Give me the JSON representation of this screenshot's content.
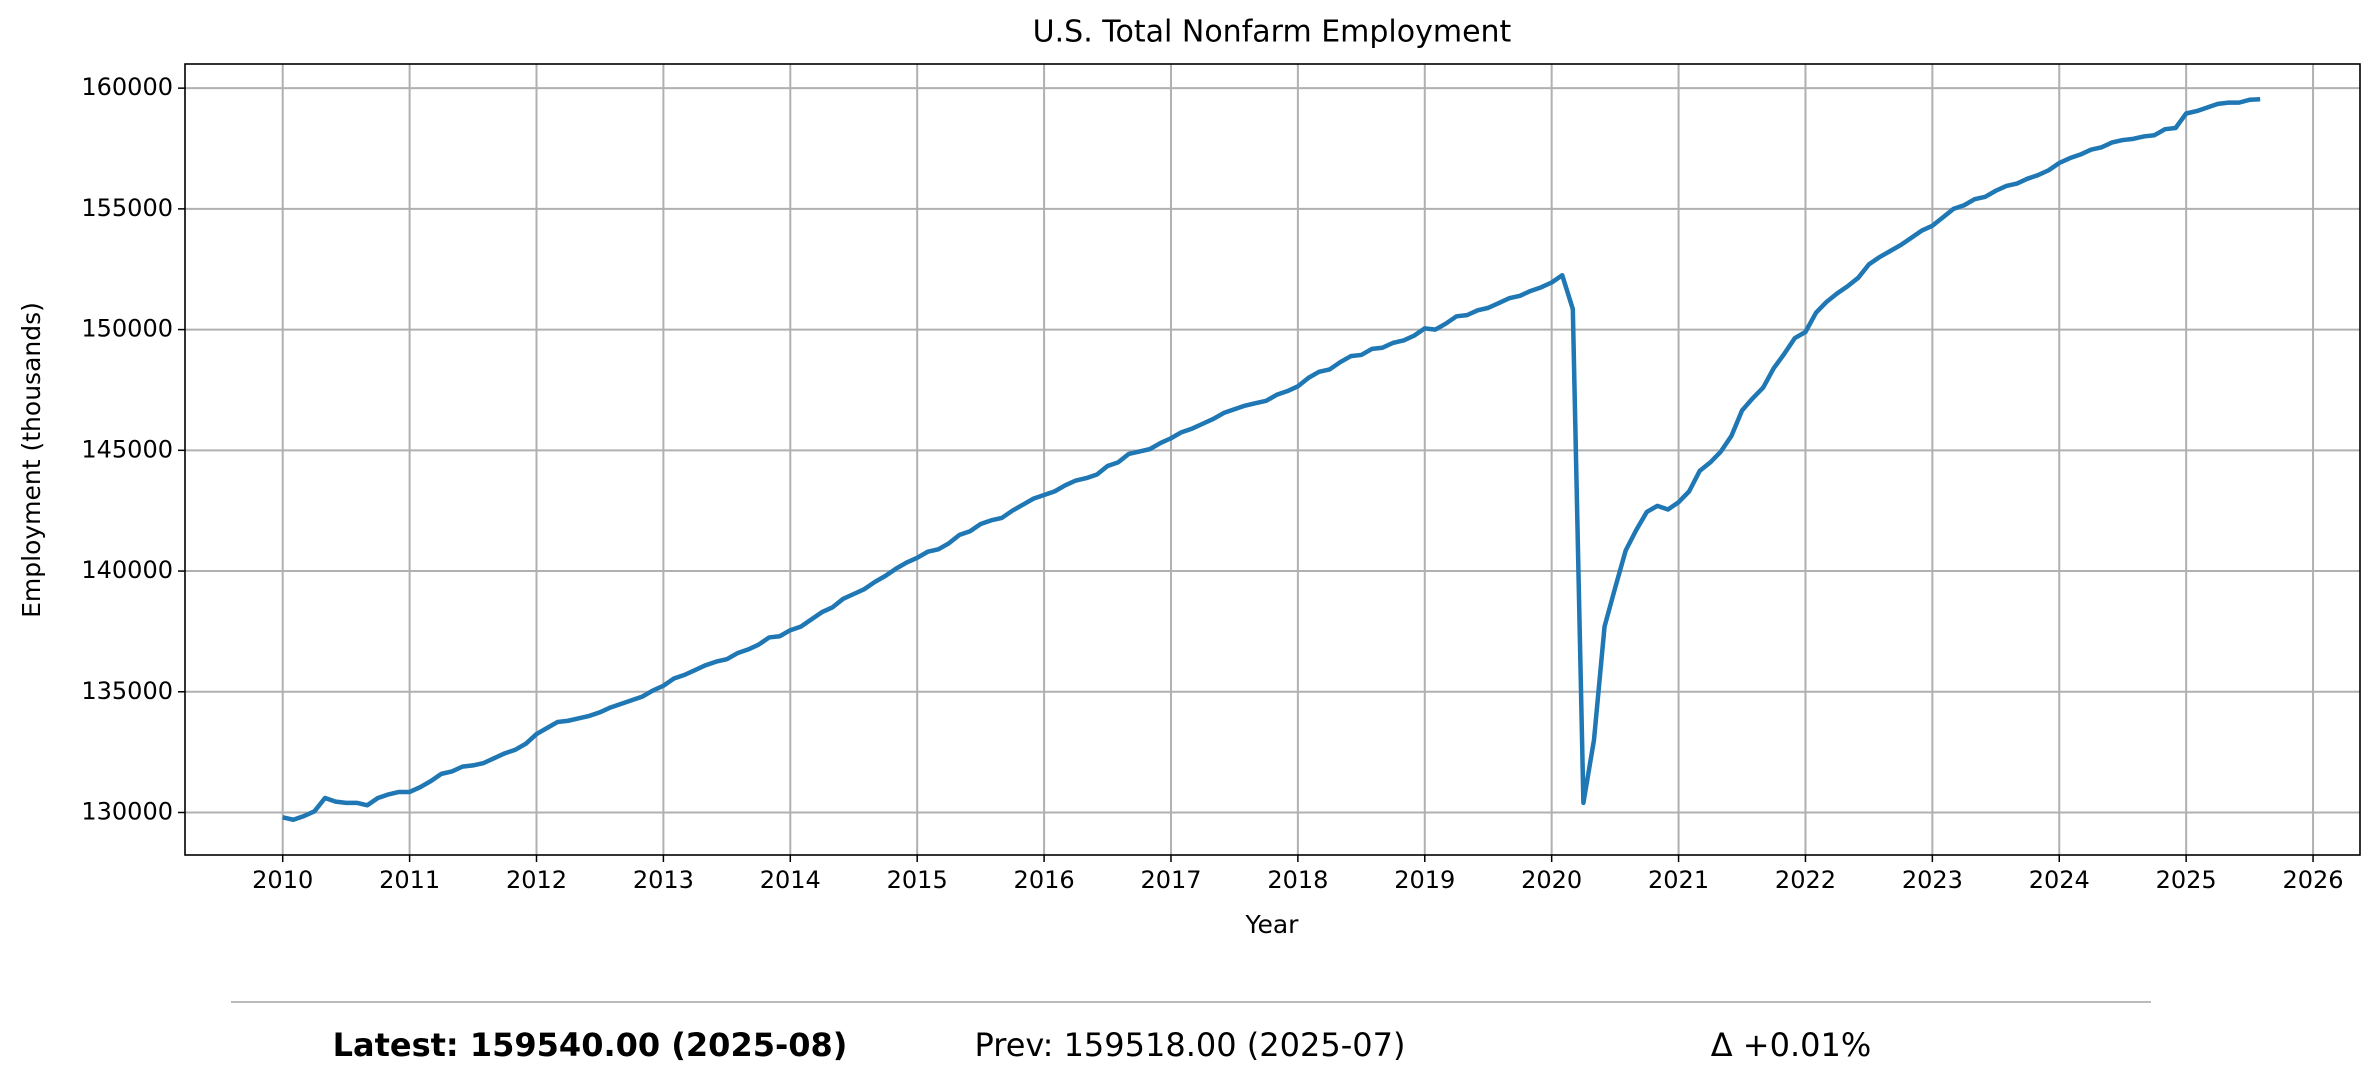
{
  "chart_data": {
    "type": "line",
    "title": "U.S. Total Nonfarm Employment",
    "x_label": "Year",
    "y_label": "Employment (thousands)",
    "x": [
      "2010-01",
      "2010-02",
      "2010-03",
      "2010-04",
      "2010-05",
      "2010-06",
      "2010-07",
      "2010-08",
      "2010-09",
      "2010-10",
      "2010-11",
      "2010-12",
      "2011-01",
      "2011-02",
      "2011-03",
      "2011-04",
      "2011-05",
      "2011-06",
      "2011-07",
      "2011-08",
      "2011-09",
      "2011-10",
      "2011-11",
      "2011-12",
      "2012-01",
      "2012-02",
      "2012-03",
      "2012-04",
      "2012-05",
      "2012-06",
      "2012-07",
      "2012-08",
      "2012-09",
      "2012-10",
      "2012-11",
      "2012-12",
      "2013-01",
      "2013-02",
      "2013-03",
      "2013-04",
      "2013-05",
      "2013-06",
      "2013-07",
      "2013-08",
      "2013-09",
      "2013-10",
      "2013-11",
      "2013-12",
      "2014-01",
      "2014-02",
      "2014-03",
      "2014-04",
      "2014-05",
      "2014-06",
      "2014-07",
      "2014-08",
      "2014-09",
      "2014-10",
      "2014-11",
      "2014-12",
      "2015-01",
      "2015-02",
      "2015-03",
      "2015-04",
      "2015-05",
      "2015-06",
      "2015-07",
      "2015-08",
      "2015-09",
      "2015-10",
      "2015-11",
      "2015-12",
      "2016-01",
      "2016-02",
      "2016-03",
      "2016-04",
      "2016-05",
      "2016-06",
      "2016-07",
      "2016-08",
      "2016-09",
      "2016-10",
      "2016-11",
      "2016-12",
      "2017-01",
      "2017-02",
      "2017-03",
      "2017-04",
      "2017-05",
      "2017-06",
      "2017-07",
      "2017-08",
      "2017-09",
      "2017-10",
      "2017-11",
      "2017-12",
      "2018-01",
      "2018-02",
      "2018-03",
      "2018-04",
      "2018-05",
      "2018-06",
      "2018-07",
      "2018-08",
      "2018-09",
      "2018-10",
      "2018-11",
      "2018-12",
      "2019-01",
      "2019-02",
      "2019-03",
      "2019-04",
      "2019-05",
      "2019-06",
      "2019-07",
      "2019-08",
      "2019-09",
      "2019-10",
      "2019-11",
      "2019-12",
      "2020-01",
      "2020-02",
      "2020-03",
      "2020-04",
      "2020-05",
      "2020-06",
      "2020-07",
      "2020-08",
      "2020-09",
      "2020-10",
      "2020-11",
      "2020-12",
      "2021-01",
      "2021-02",
      "2021-03",
      "2021-04",
      "2021-05",
      "2021-06",
      "2021-07",
      "2021-08",
      "2021-09",
      "2021-10",
      "2021-11",
      "2021-12",
      "2022-01",
      "2022-02",
      "2022-03",
      "2022-04",
      "2022-05",
      "2022-06",
      "2022-07",
      "2022-08",
      "2022-09",
      "2022-10",
      "2022-11",
      "2022-12",
      "2023-01",
      "2023-02",
      "2023-03",
      "2023-04",
      "2023-05",
      "2023-06",
      "2023-07",
      "2023-08",
      "2023-09",
      "2023-10",
      "2023-11",
      "2023-12",
      "2024-01",
      "2024-02",
      "2024-03",
      "2024-04",
      "2024-05",
      "2024-06",
      "2024-07",
      "2024-08",
      "2024-09",
      "2024-10",
      "2024-11",
      "2024-12",
      "2025-01",
      "2025-02",
      "2025-03",
      "2025-04",
      "2025-05",
      "2025-06",
      "2025-07",
      "2025-08"
    ],
    "series": [
      {
        "name": "Total Nonfarm",
        "color": "#1f77b4",
        "values": [
          129800,
          129700,
          129850,
          130050,
          130600,
          130450,
          130400,
          130400,
          130300,
          130600,
          130750,
          130850,
          130850,
          131050,
          131300,
          131600,
          131700,
          131900,
          131950,
          132050,
          132250,
          132450,
          132600,
          132850,
          133250,
          133500,
          133750,
          133800,
          133900,
          134000,
          134150,
          134350,
          134500,
          134650,
          134800,
          135050,
          135250,
          135550,
          135700,
          135900,
          136100,
          136250,
          136350,
          136600,
          136750,
          136950,
          137250,
          137300,
          137550,
          137700,
          138000,
          138300,
          138500,
          138850,
          139050,
          139250,
          139550,
          139800,
          140100,
          140350,
          140550,
          140800,
          140900,
          141150,
          141500,
          141650,
          141950,
          142100,
          142200,
          142500,
          142750,
          143000,
          143150,
          143300,
          143550,
          143750,
          143850,
          144000,
          144350,
          144500,
          144850,
          144950,
          145050,
          145300,
          145500,
          145750,
          145900,
          146100,
          146300,
          146550,
          146700,
          146850,
          146950,
          147050,
          147300,
          147450,
          147650,
          148000,
          148250,
          148350,
          148650,
          148900,
          148950,
          149200,
          149250,
          149450,
          149550,
          149750,
          150050,
          150000,
          150250,
          150550,
          150600,
          150800,
          150900,
          151100,
          151300,
          151400,
          151600,
          151750,
          151950,
          152250,
          150850,
          130400,
          133000,
          137700,
          139300,
          140850,
          141700,
          142450,
          142700,
          142550,
          142850,
          143300,
          144150,
          144500,
          144950,
          145600,
          146650,
          147150,
          147600,
          148400,
          149000,
          149650,
          149900,
          150700,
          151150,
          151500,
          151800,
          152150,
          152700,
          153000,
          153250,
          153500,
          153800,
          154100,
          154300,
          154650,
          155000,
          155150,
          155400,
          155500,
          155750,
          155950,
          156050,
          156250,
          156400,
          156600,
          156900,
          157100,
          157250,
          157450,
          157550,
          157750,
          157850,
          157900,
          158000,
          158050,
          158300,
          158350,
          158950,
          159050,
          159200,
          159350,
          159400,
          159400,
          159518,
          159540
        ]
      }
    ],
    "xlim": [
      2009.23,
      2026.37
    ],
    "xticks": [
      2010,
      2011,
      2012,
      2013,
      2014,
      2015,
      2016,
      2017,
      2018,
      2019,
      2020,
      2021,
      2022,
      2023,
      2024,
      2025,
      2026
    ],
    "ylim": [
      128240,
      161000
    ],
    "yticks": [
      130000,
      135000,
      140000,
      145000,
      150000,
      155000,
      160000
    ],
    "grid": true
  },
  "footer": {
    "latest": "Latest: 159540.00 (2025-08)",
    "previous": "Prev: 159518.00 (2025-07)",
    "change": "Δ +0.01%"
  }
}
